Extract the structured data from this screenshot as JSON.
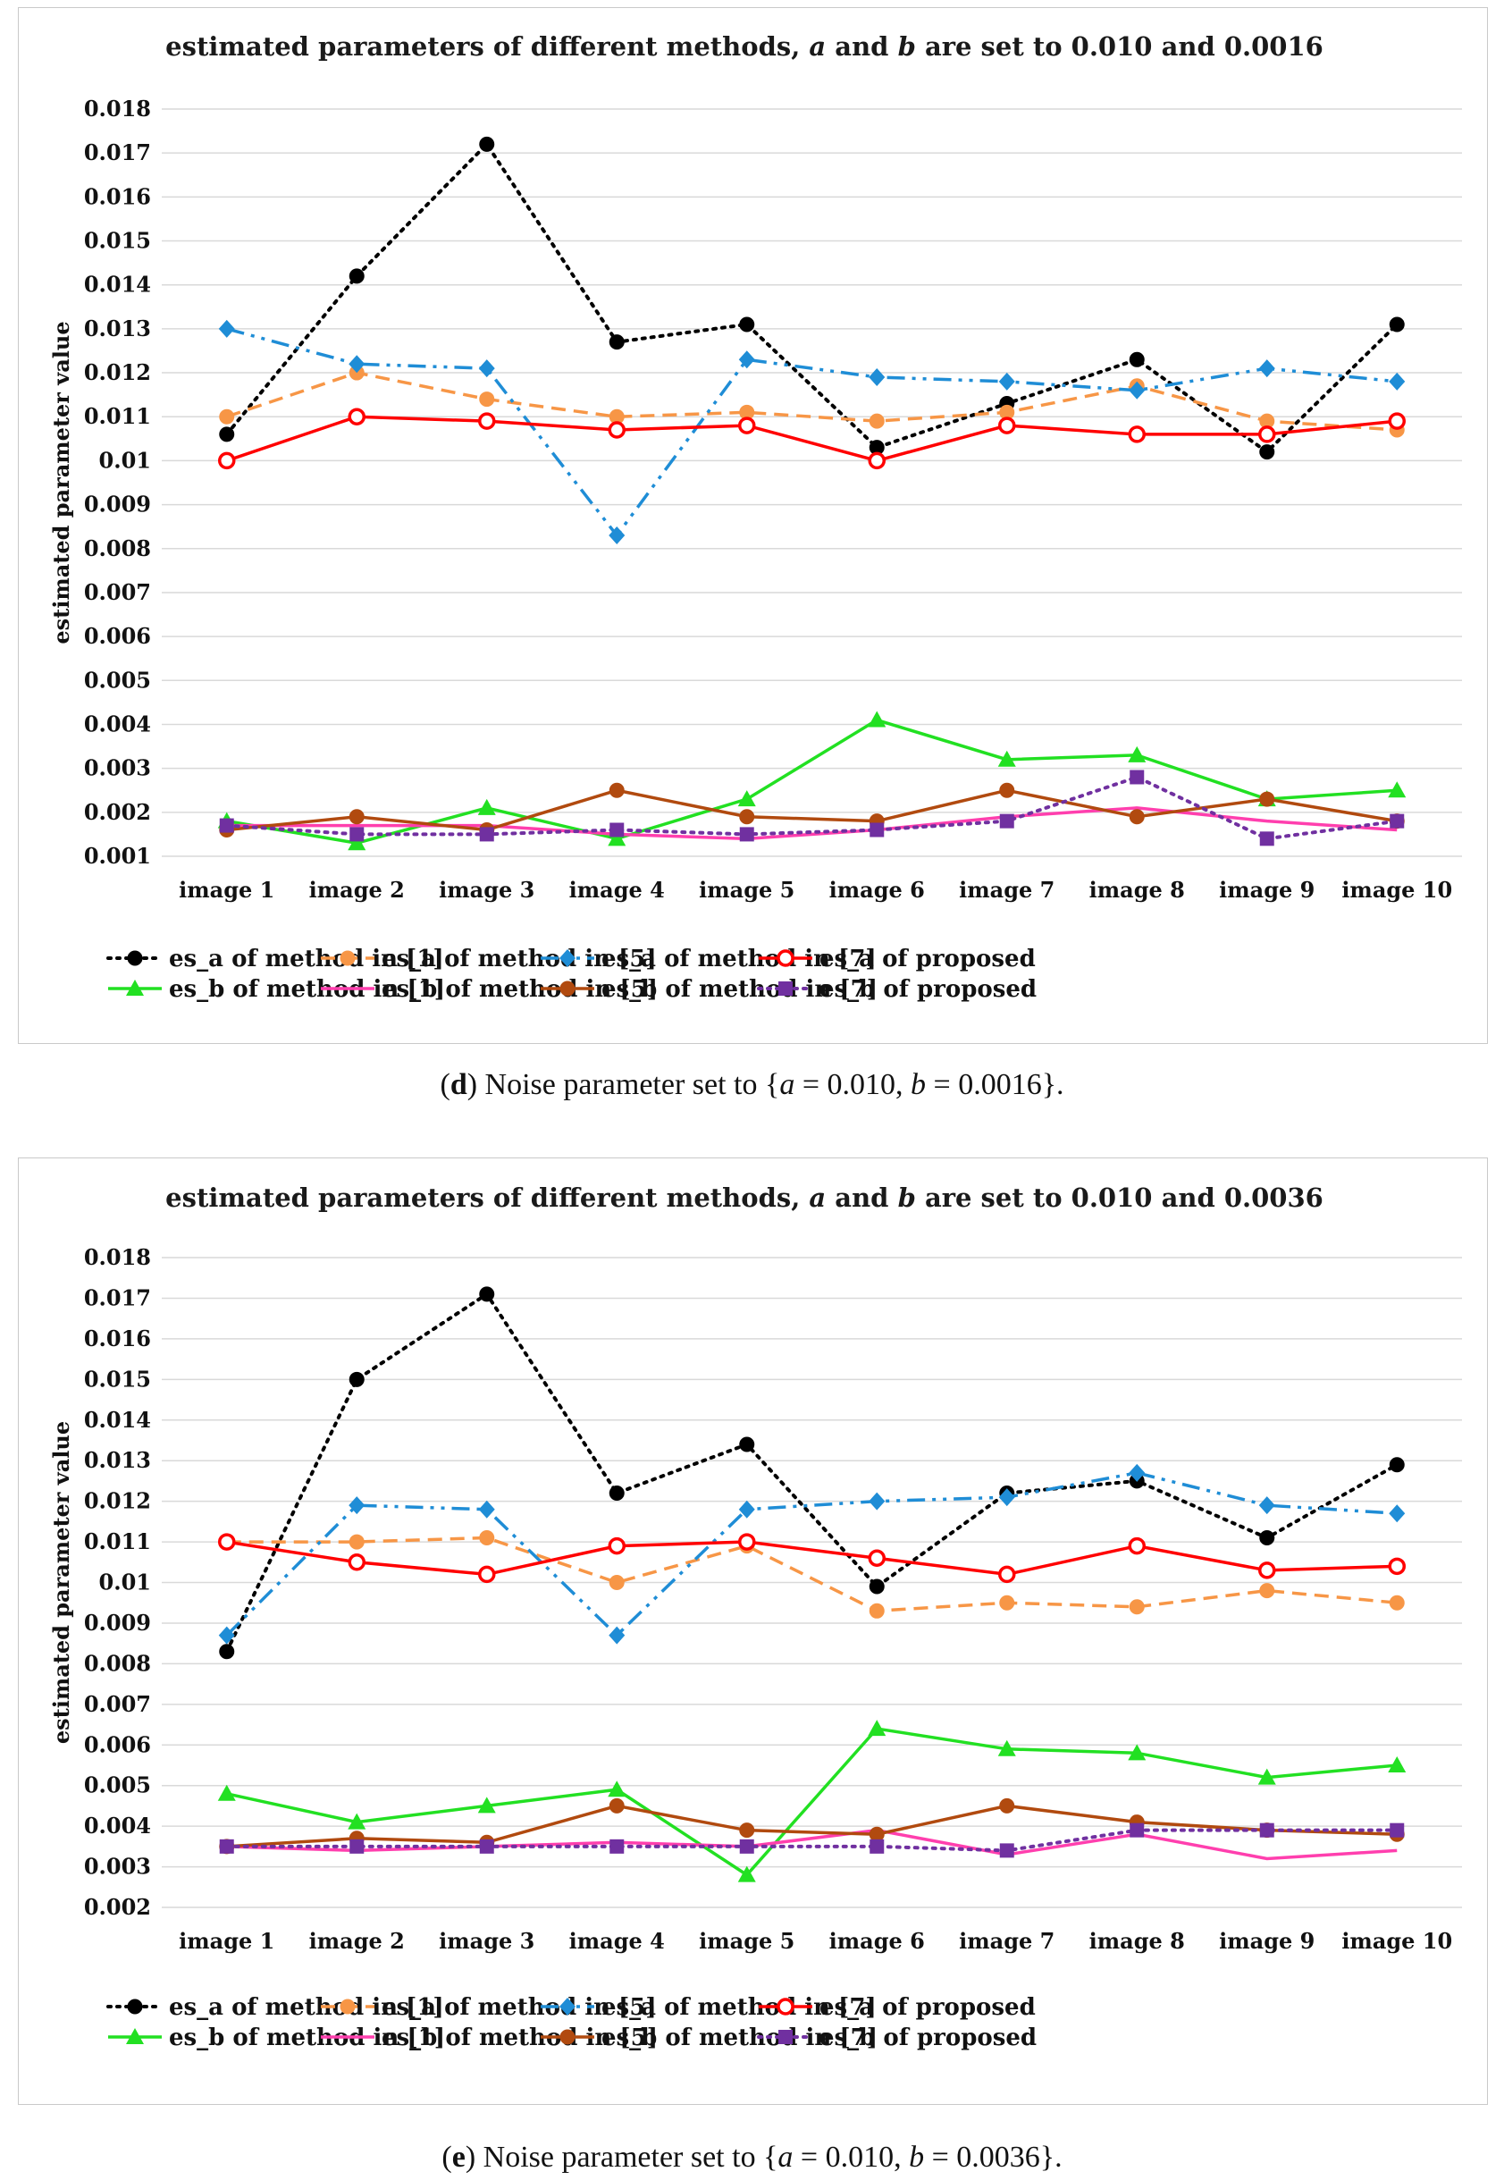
{
  "figure": {
    "captions": [
      {
        "letter": "d",
        "text_a": ") Noise parameter set to {",
        "var_a": "a",
        "val_a": " = 0.010, ",
        "var_b": "b",
        "val_b": " = 0.0016}."
      },
      {
        "letter": "e",
        "text_a": ") Noise parameter set to {",
        "var_a": "a",
        "val_a": " = 0.010, ",
        "var_b": "b",
        "val_b": " = 0.0036}."
      }
    ]
  },
  "chart_data": [
    {
      "type": "line",
      "title_parts": [
        "estimated parameters of different methods, ",
        "a",
        " and ",
        "b",
        " are set to 0.010 and 0.0016"
      ],
      "ylabel": "estimated  parameter value",
      "ylim": [
        0.001,
        0.018
      ],
      "yticks": [
        "0.001",
        "0.002",
        "0.003",
        "0.004",
        "0.005",
        "0.006",
        "0.007",
        "0.008",
        "0.009",
        "0.01",
        "0.011",
        "0.012",
        "0.013",
        "0.014",
        "0.015",
        "0.016",
        "0.017",
        "0.018"
      ],
      "categories": [
        "image 1",
        "image 2",
        "image 3",
        "image 4",
        "image 5",
        "image 6",
        "image 7",
        "image 8",
        "image 9",
        "image 10"
      ],
      "grid": true,
      "legend_position": "bottom",
      "series": [
        {
          "name": "es_a of method in [1]",
          "color": "#000000",
          "dash": "dotted",
          "marker": "circle",
          "values": [
            0.0106,
            0.0142,
            0.0172,
            0.0127,
            0.0131,
            0.0103,
            0.0113,
            0.0123,
            0.0102,
            0.0131
          ]
        },
        {
          "name": "es_a of method in [5]",
          "color": "#f79646",
          "dash": "dashed",
          "marker": "circle",
          "values": [
            0.011,
            0.012,
            0.0114,
            0.011,
            0.0111,
            0.0109,
            0.0111,
            0.0117,
            0.0109,
            0.0107
          ]
        },
        {
          "name": "es_a of method in [7]",
          "color": "#1f8dd6",
          "dash": "dashdotdot",
          "marker": "diamond",
          "values": [
            0.013,
            0.0122,
            0.0121,
            0.0083,
            0.0123,
            0.0119,
            0.0118,
            0.0116,
            0.0121,
            0.0118
          ]
        },
        {
          "name": "es_a of proposed",
          "color": "#ff0000",
          "dash": "solid",
          "marker": "open-circle",
          "values": [
            0.01,
            0.011,
            0.0109,
            0.0107,
            0.0108,
            0.01,
            0.0108,
            0.0106,
            0.0106,
            0.0109
          ]
        },
        {
          "name": "es_b of method in [1]",
          "color": "#22e022",
          "dash": "solid",
          "marker": "triangle",
          "values": [
            0.0018,
            0.0013,
            0.0021,
            0.0014,
            0.0023,
            0.0041,
            0.0032,
            0.0033,
            0.0023,
            0.0025
          ]
        },
        {
          "name": "es_b of method in [5]",
          "color": "#ff3fae",
          "dash": "solid",
          "marker": "none",
          "values": [
            0.0017,
            0.0017,
            0.0017,
            0.0015,
            0.0014,
            0.0016,
            0.0019,
            0.0021,
            0.0018,
            0.0016
          ]
        },
        {
          "name": "es_b of method in [7]",
          "color": "#b14a0f",
          "dash": "solid",
          "marker": "circle",
          "values": [
            0.0016,
            0.0019,
            0.0016,
            0.0025,
            0.0019,
            0.0018,
            0.0025,
            0.0019,
            0.0023,
            0.0018
          ]
        },
        {
          "name": "es_b of proposed",
          "color": "#7030a0",
          "dash": "dotted",
          "marker": "square",
          "values": [
            0.0017,
            0.0015,
            0.0015,
            0.0016,
            0.0015,
            0.0016,
            0.0018,
            0.0028,
            0.0014,
            0.0018
          ]
        }
      ]
    },
    {
      "type": "line",
      "title_parts": [
        "estimated parameters of different methods, ",
        "a",
        " and ",
        "b",
        " are set to 0.010 and 0.0036"
      ],
      "ylabel": "estimated  parameter value",
      "ylim": [
        0.002,
        0.018
      ],
      "yticks": [
        "0.002",
        "0.003",
        "0.004",
        "0.005",
        "0.006",
        "0.007",
        "0.008",
        "0.009",
        "0.01",
        "0.011",
        "0.012",
        "0.013",
        "0.014",
        "0.015",
        "0.016",
        "0.017",
        "0.018"
      ],
      "categories": [
        "image 1",
        "image 2",
        "image 3",
        "image 4",
        "image 5",
        "image 6",
        "image 7",
        "image 8",
        "image 9",
        "image 10"
      ],
      "grid": true,
      "legend_position": "bottom",
      "series": [
        {
          "name": "es_a of method in [1]",
          "color": "#000000",
          "dash": "dotted",
          "marker": "circle",
          "values": [
            0.0083,
            0.015,
            0.0171,
            0.0122,
            0.0134,
            0.0099,
            0.0122,
            0.0125,
            0.0111,
            0.0129
          ]
        },
        {
          "name": "es_a of method in [5]",
          "color": "#f79646",
          "dash": "dashed",
          "marker": "circle",
          "values": [
            0.011,
            0.011,
            0.0111,
            0.01,
            0.0109,
            0.0093,
            0.0095,
            0.0094,
            0.0098,
            0.0095
          ]
        },
        {
          "name": "es_a of method in [7]",
          "color": "#1f8dd6",
          "dash": "dashdotdot",
          "marker": "diamond",
          "values": [
            0.0087,
            0.0119,
            0.0118,
            0.0087,
            0.0118,
            0.012,
            0.0121,
            0.0127,
            0.0119,
            0.0117
          ]
        },
        {
          "name": "es_a of proposed",
          "color": "#ff0000",
          "dash": "solid",
          "marker": "open-circle",
          "values": [
            0.011,
            0.0105,
            0.0102,
            0.0109,
            0.011,
            0.0106,
            0.0102,
            0.0109,
            0.0103,
            0.0104
          ]
        },
        {
          "name": "es_b of method in [1]",
          "color": "#22e022",
          "dash": "solid",
          "marker": "triangle",
          "values": [
            0.0048,
            0.0041,
            0.0045,
            0.0049,
            0.0028,
            0.0064,
            0.0059,
            0.0058,
            0.0052,
            0.0055
          ]
        },
        {
          "name": "es_b of method in [5]",
          "color": "#ff3fae",
          "dash": "solid",
          "marker": "none",
          "values": [
            0.0035,
            0.0034,
            0.0035,
            0.0036,
            0.0035,
            0.0039,
            0.0033,
            0.0038,
            0.0032,
            0.0034
          ]
        },
        {
          "name": "es_b of method in [7]",
          "color": "#b14a0f",
          "dash": "solid",
          "marker": "circle",
          "values": [
            0.0035,
            0.0037,
            0.0036,
            0.0045,
            0.0039,
            0.0038,
            0.0045,
            0.0041,
            0.0039,
            0.0038
          ]
        },
        {
          "name": "es_b of proposed",
          "color": "#7030a0",
          "dash": "dotted",
          "marker": "square",
          "values": [
            0.0035,
            0.0035,
            0.0035,
            0.0035,
            0.0035,
            0.0035,
            0.0034,
            0.0039,
            0.0039,
            0.0039
          ]
        }
      ]
    }
  ]
}
